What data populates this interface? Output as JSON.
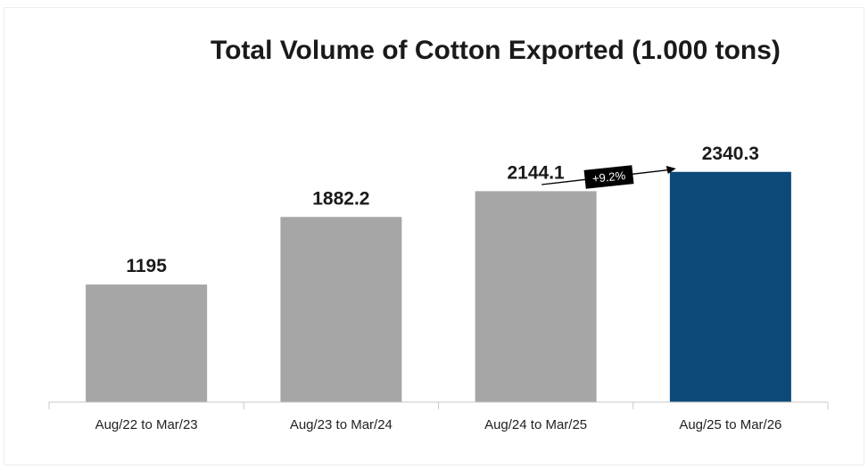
{
  "chart_data": {
    "type": "bar",
    "title": "Total Volume of Cotton Exported (1.000 tons)",
    "categories": [
      "Aug/22 to Mar/23",
      "Aug/23 to Mar/24",
      "Aug/24 to Mar/25",
      "Aug/25 to Mar/26"
    ],
    "values": [
      1195,
      1882.2,
      2144.1,
      2340.3
    ],
    "value_labels": [
      "1195",
      "1882.2",
      "2144.1",
      "2340.3"
    ],
    "bar_colors": [
      "#a6a6a6",
      "#a6a6a6",
      "#a6a6a6",
      "#0b4a78"
    ],
    "xlabel": "",
    "ylabel": "",
    "ylim": [
      0,
      2900
    ],
    "grid": false,
    "legend": "none",
    "annotations": [
      {
        "text": "+9.2%",
        "from_category": "Aug/24 to Mar/25",
        "to_category": "Aug/25 to Mar/26"
      }
    ]
  },
  "colors": {
    "base_bar": "#a6a6a6",
    "highlight_bar": "#0b4a78",
    "annotation_bg": "#000000",
    "annotation_text": "#ffffff"
  }
}
